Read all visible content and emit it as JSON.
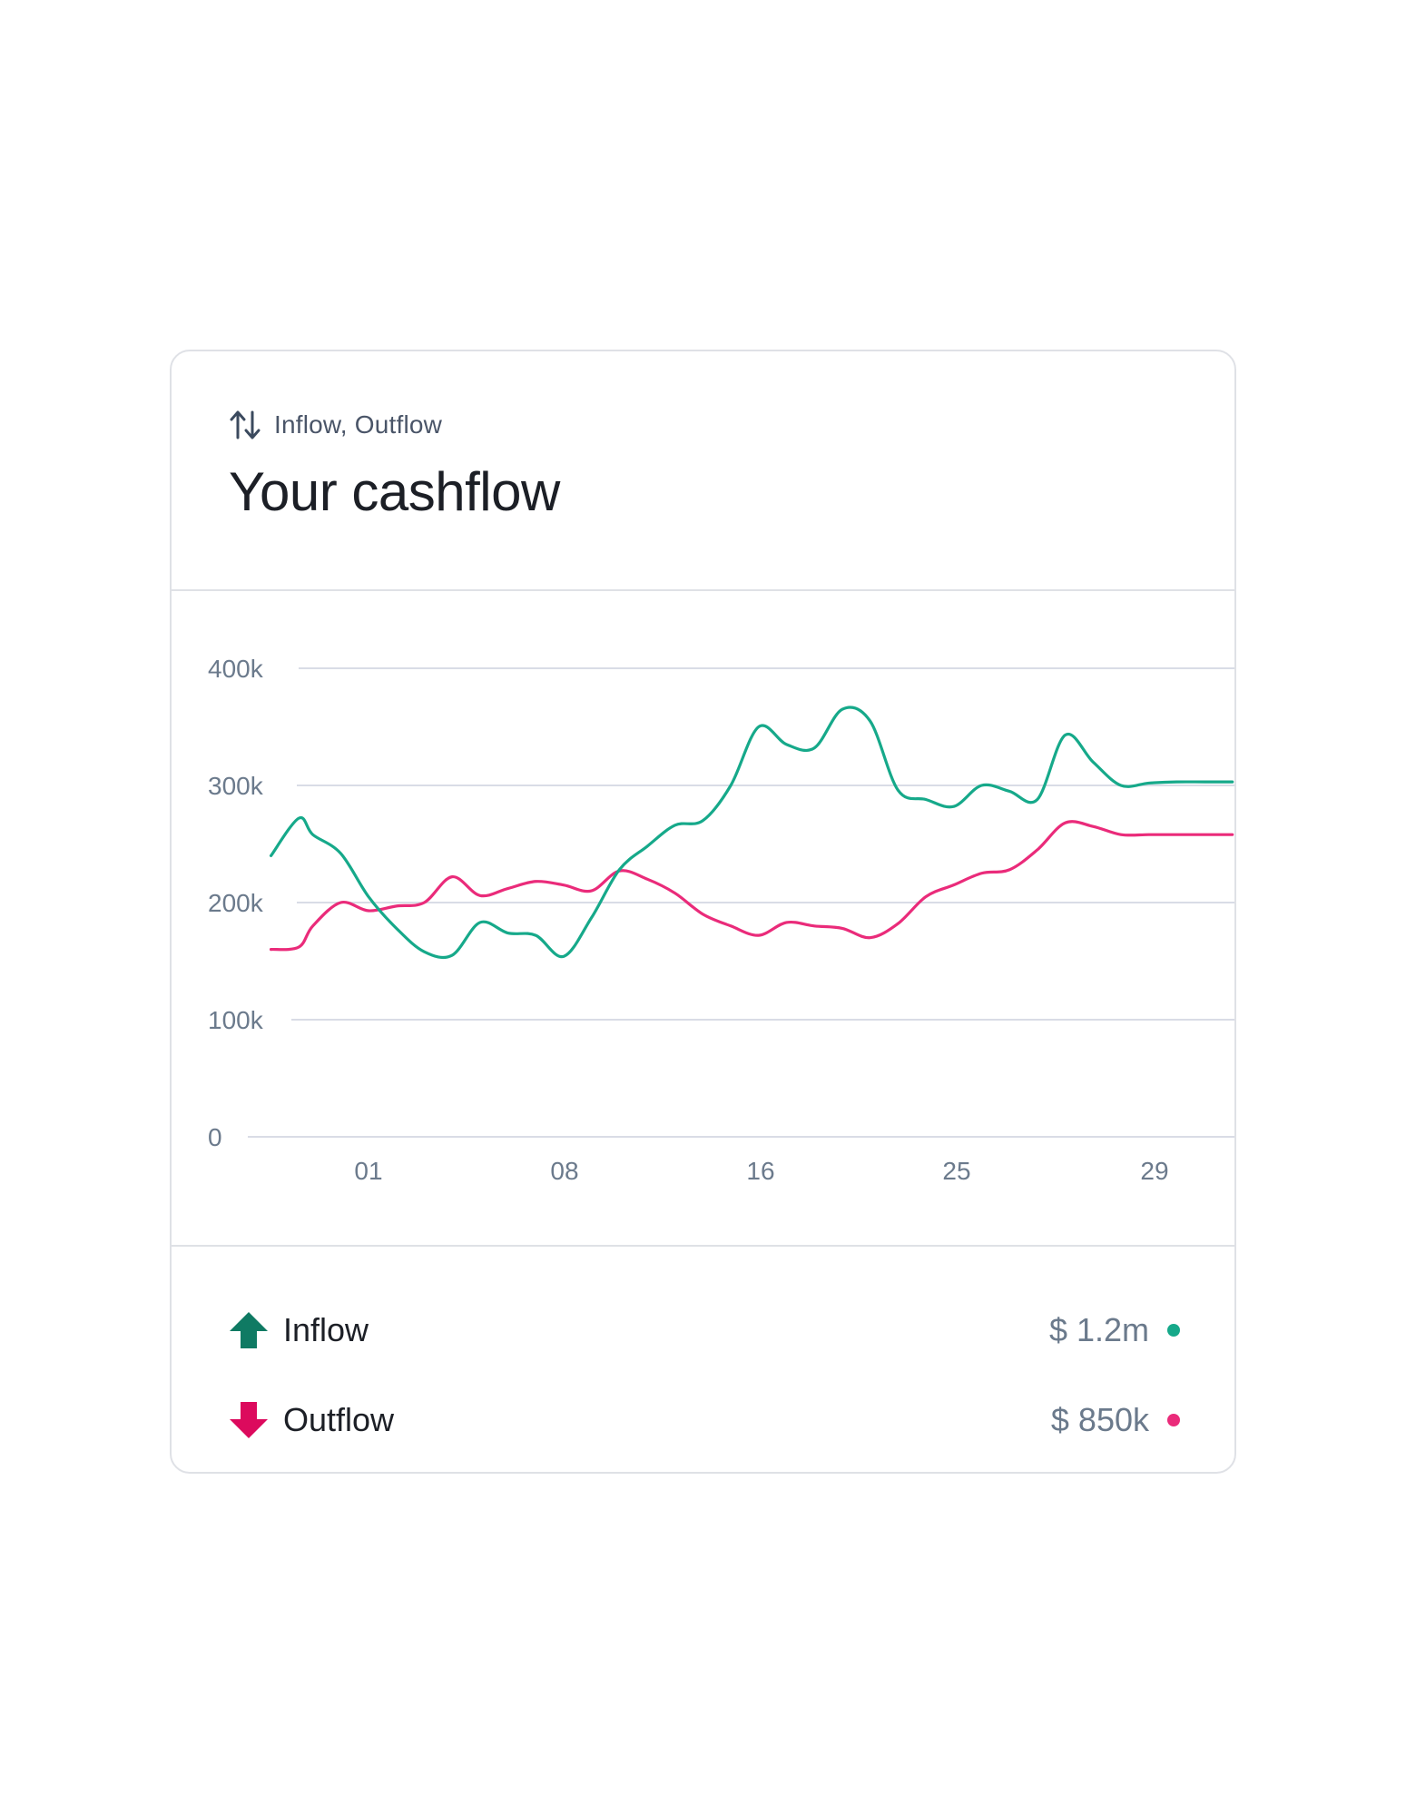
{
  "header": {
    "subtitle": "Inflow, Outflow",
    "title": "Your cashflow"
  },
  "colors": {
    "inflow": "#16a98a",
    "outflow": "#ea2b7a",
    "inflow_icon": "#0f7a63",
    "outflow_icon": "#dc0a5d",
    "grid": "#d9dce6",
    "tick": "#6b7a8c"
  },
  "chart_data": {
    "type": "line",
    "title": "Your cashflow",
    "x_ticks": [
      "01",
      "08",
      "16",
      "25",
      "29"
    ],
    "y_ticks": [
      "0",
      "100k",
      "200k",
      "300k",
      "400k"
    ],
    "ylim": [
      0,
      400000
    ],
    "grid": true,
    "series": [
      {
        "name": "Inflow",
        "color": "#16a98a",
        "x": [
          -2.5,
          -1.5,
          -1,
          0,
          1,
          2,
          3,
          4,
          5,
          6,
          7,
          8,
          9,
          10,
          11,
          12,
          13,
          14,
          15,
          16,
          17,
          18,
          19,
          20,
          21,
          22,
          23,
          24,
          25,
          26,
          27,
          28,
          29,
          30,
          31,
          32
        ],
        "y": [
          240000,
          272000,
          258000,
          242000,
          205000,
          178000,
          158000,
          155000,
          183000,
          174000,
          172000,
          154000,
          187000,
          228000,
          248000,
          266000,
          270000,
          300000,
          350000,
          335000,
          332000,
          365000,
          355000,
          296000,
          288000,
          282000,
          300000,
          295000,
          288000,
          343000,
          320000,
          300000,
          302000,
          303000,
          303000,
          303000
        ]
      },
      {
        "name": "Outflow",
        "color": "#ea2b7a",
        "x": [
          -2.5,
          -1.5,
          -1,
          0,
          1,
          2,
          3,
          4,
          5,
          6,
          7,
          8,
          9,
          10,
          11,
          12,
          13,
          14,
          15,
          16,
          17,
          18,
          19,
          20,
          21,
          22,
          23,
          24,
          25,
          26,
          27,
          28,
          29,
          30,
          31,
          32
        ],
        "y": [
          160000,
          162000,
          180000,
          200000,
          193000,
          197000,
          200000,
          222000,
          206000,
          212000,
          218000,
          215000,
          210000,
          227000,
          220000,
          208000,
          190000,
          180000,
          172000,
          183000,
          180000,
          178000,
          170000,
          182000,
          205000,
          215000,
          225000,
          228000,
          245000,
          268000,
          265000,
          258000,
          258000,
          258000,
          258000,
          258000
        ]
      }
    ]
  },
  "legend": {
    "items": [
      {
        "label": "Inflow",
        "value": "$ 1.2m"
      },
      {
        "label": "Outflow",
        "value": "$ 850k"
      }
    ]
  }
}
